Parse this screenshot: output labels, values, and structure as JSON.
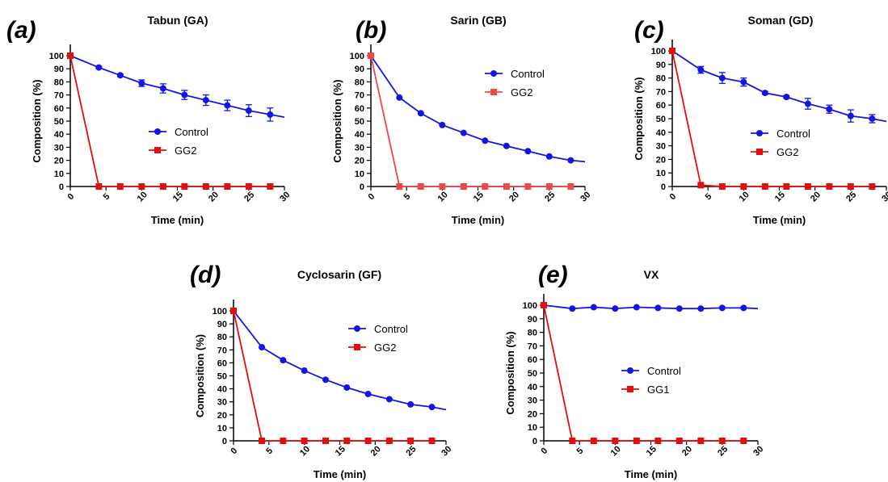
{
  "colors": {
    "control": "#1515e0",
    "gg": "#e01010",
    "gg_light": "#f04848",
    "axis": "#000000"
  },
  "chart_data": [
    {
      "id": "a",
      "type": "line",
      "panel_letter": "(a)",
      "title": "Tabun (GA)",
      "xlabel": "Time (min)",
      "ylabel": "Composition (%)",
      "xlim": [
        0,
        30
      ],
      "ylim": [
        0,
        100
      ],
      "xticks": [
        0,
        5,
        10,
        15,
        20,
        25,
        30
      ],
      "yticks": [
        0,
        10,
        20,
        30,
        40,
        50,
        60,
        70,
        80,
        90,
        100
      ],
      "legend_position": "center-right",
      "series": [
        {
          "name": "Control",
          "marker": "circle",
          "color": "#1515e0",
          "x": [
            0,
            4,
            7,
            10,
            13,
            16,
            19,
            22,
            25,
            28
          ],
          "y": [
            100,
            91,
            85,
            79,
            75,
            70,
            66,
            62,
            58,
            55
          ],
          "err": [
            0,
            1,
            1,
            2.5,
            3.5,
            3.5,
            4,
            4,
            4.5,
            5
          ],
          "fit_end": [
            30,
            53
          ]
        },
        {
          "name": "GG2",
          "marker": "square",
          "color": "#e01010",
          "x": [
            0,
            4,
            7,
            10,
            13,
            16,
            19,
            22,
            25,
            28
          ],
          "y": [
            100,
            0,
            0,
            0,
            0,
            0,
            0,
            0,
            0,
            0
          ]
        }
      ]
    },
    {
      "id": "b",
      "type": "line",
      "panel_letter": "(b)",
      "title": "Sarin (GB)",
      "xlabel": "Time (min)",
      "ylabel": "Composition (%)",
      "xlim": [
        0,
        30
      ],
      "ylim": [
        0,
        100
      ],
      "xticks": [
        0,
        5,
        10,
        15,
        20,
        25,
        30
      ],
      "yticks": [
        0,
        10,
        20,
        30,
        40,
        50,
        60,
        70,
        80,
        90,
        100
      ],
      "legend_position": "top-right",
      "series": [
        {
          "name": "Control",
          "marker": "circle",
          "color": "#1515e0",
          "x": [
            0,
            4,
            7,
            10,
            13,
            16,
            19,
            22,
            25,
            28
          ],
          "y": [
            100,
            68,
            56,
            47,
            41,
            35,
            31,
            27,
            23,
            20
          ],
          "fit_end": [
            30,
            19
          ]
        },
        {
          "name": "GG2",
          "marker": "square",
          "color": "#f04848",
          "x": [
            0,
            4,
            7,
            10,
            13,
            16,
            19,
            22,
            25,
            28
          ],
          "y": [
            100,
            0,
            0,
            0,
            0,
            0,
            0,
            0,
            0,
            0
          ]
        }
      ]
    },
    {
      "id": "c",
      "type": "line",
      "panel_letter": "(c)",
      "title": "Soman (GD)",
      "xlabel": "Time (min)",
      "ylabel": "Composition (%)",
      "xlim": [
        0,
        30
      ],
      "ylim": [
        0,
        100
      ],
      "xticks": [
        0,
        5,
        10,
        15,
        20,
        25,
        30
      ],
      "yticks": [
        0,
        10,
        20,
        30,
        40,
        50,
        60,
        70,
        80,
        90,
        100
      ],
      "legend_position": "center-right",
      "series": [
        {
          "name": "Control",
          "marker": "circle",
          "color": "#1515e0",
          "x": [
            0,
            4,
            7,
            10,
            13,
            16,
            19,
            22,
            25,
            28
          ],
          "y": [
            100,
            86,
            80,
            77,
            69,
            66,
            61,
            57,
            52,
            50
          ],
          "err": [
            0,
            2.5,
            4,
            3,
            1,
            1,
            4,
            3,
            4.5,
            3
          ],
          "fit_end": [
            30,
            48
          ]
        },
        {
          "name": "GG2",
          "marker": "square",
          "color": "#e01010",
          "x": [
            0,
            4,
            7,
            10,
            13,
            16,
            19,
            22,
            25,
            28
          ],
          "y": [
            100,
            1,
            0,
            0,
            0,
            0,
            0,
            0,
            0,
            0
          ]
        }
      ]
    },
    {
      "id": "d",
      "type": "line",
      "panel_letter": "(d)",
      "title": "Cyclosarin (GF)",
      "xlabel": "Time (min)",
      "ylabel": "Composition (%)",
      "xlim": [
        0,
        30
      ],
      "ylim": [
        0,
        100
      ],
      "xticks": [
        0,
        5,
        10,
        15,
        20,
        25,
        30
      ],
      "yticks": [
        0,
        10,
        20,
        30,
        40,
        50,
        60,
        70,
        80,
        90,
        100
      ],
      "legend_position": "top-right",
      "series": [
        {
          "name": "Control",
          "marker": "circle",
          "color": "#1515e0",
          "x": [
            0,
            4,
            7,
            10,
            13,
            16,
            19,
            22,
            25,
            28
          ],
          "y": [
            100,
            72,
            62,
            54,
            47,
            41,
            36,
            32,
            28,
            26
          ],
          "fit_end": [
            30,
            24
          ]
        },
        {
          "name": "GG2",
          "marker": "square",
          "color": "#e01010",
          "x": [
            0,
            4,
            7,
            10,
            13,
            16,
            19,
            22,
            25,
            28
          ],
          "y": [
            100,
            0,
            0,
            0,
            0,
            0,
            0,
            0,
            0,
            0
          ]
        }
      ]
    },
    {
      "id": "e",
      "type": "line",
      "panel_letter": "(e)",
      "title": "VX",
      "xlabel": "Time (min)",
      "ylabel": "Composition (%)",
      "xlim": [
        0,
        30
      ],
      "ylim": [
        0,
        100
      ],
      "xticks": [
        0,
        5,
        10,
        15,
        20,
        25,
        30
      ],
      "yticks": [
        0,
        10,
        20,
        30,
        40,
        50,
        60,
        70,
        80,
        90,
        100
      ],
      "legend_position": "center-right",
      "series": [
        {
          "name": "Control",
          "marker": "circle",
          "color": "#1515e0",
          "x": [
            0,
            4,
            7,
            10,
            13,
            16,
            19,
            22,
            25,
            28
          ],
          "y": [
            100,
            97.5,
            98.5,
            97.5,
            98.5,
            98,
            97.5,
            97.5,
            98,
            98
          ],
          "fit_end": [
            30,
            97.5
          ]
        },
        {
          "name": "GG1",
          "marker": "square",
          "color": "#e01010",
          "x": [
            0,
            4,
            7,
            10,
            13,
            16,
            19,
            22,
            25,
            28
          ],
          "y": [
            100,
            0,
            0,
            0,
            0,
            0,
            0,
            0,
            0,
            0
          ]
        }
      ]
    }
  ]
}
